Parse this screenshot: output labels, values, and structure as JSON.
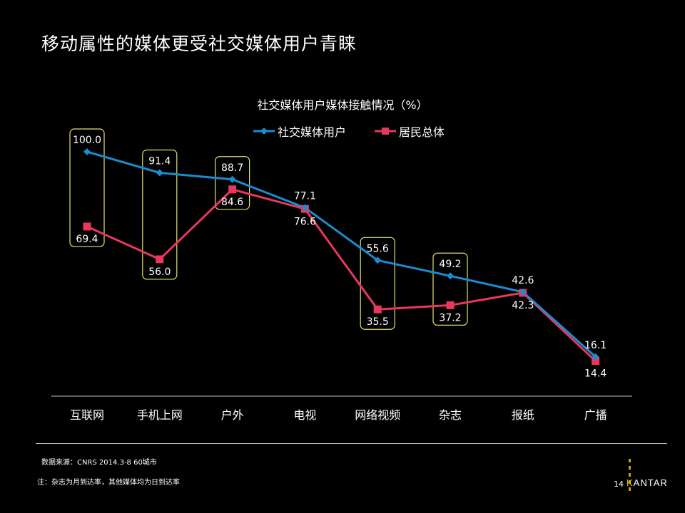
{
  "slide": {
    "title": "移动属性的媒体更受社交媒体用户青睐",
    "page_number": "14",
    "source": "数据来源：CNRS 2014.3-8  60城市",
    "note": "注：杂志为月到达率，其他媒体均为日到达率",
    "brand_mark": "K",
    "brand_text": "ANTAR"
  },
  "colors": {
    "series_social": "#1a8ccf",
    "series_resident": "#e8385e",
    "highlight_box": "#e8e070",
    "axis": "#bfbfbf"
  },
  "chart_data": {
    "type": "line",
    "title": "社交媒体用户媒体接触情况（%）",
    "categories": [
      "互联网",
      "手机上网",
      "户外",
      "电视",
      "网络视频",
      "杂志",
      "报纸",
      "广播"
    ],
    "series": [
      {
        "name": "社交媒体用户",
        "marker": "diamond",
        "values": [
          100.0,
          91.4,
          88.7,
          77.1,
          55.6,
          49.2,
          42.6,
          16.1
        ]
      },
      {
        "name": "居民总体",
        "marker": "square",
        "values": [
          69.4,
          56.0,
          84.6,
          76.6,
          35.5,
          37.2,
          42.3,
          14.4
        ]
      }
    ],
    "highlighted_categories": [
      "互联网",
      "手机上网",
      "户外",
      "网络视频",
      "杂志"
    ],
    "ylim": [
      0,
      110
    ],
    "legend": "top",
    "grid": false
  }
}
